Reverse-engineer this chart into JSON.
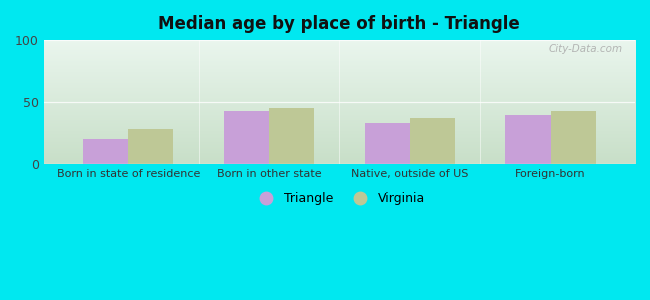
{
  "title": "Median age by place of birth - Triangle",
  "categories": [
    "Born in state of residence",
    "Born in other state",
    "Native, outside of US",
    "Foreign-born"
  ],
  "triangle_values": [
    20,
    43,
    33,
    40
  ],
  "virginia_values": [
    28,
    45,
    37,
    43
  ],
  "triangle_color": "#c8a0d8",
  "virginia_color": "#bec896",
  "ylim": [
    0,
    100
  ],
  "yticks": [
    0,
    50,
    100
  ],
  "background_top_left": "#d8ede0",
  "background_top_right": "#eaf5ee",
  "background_bottom": "#d8eddf",
  "outer_bg": "#00e8f0",
  "bar_width": 0.32,
  "legend_labels": [
    "Triangle",
    "Virginia"
  ],
  "watermark": "City-Data.com",
  "title_fontsize": 12,
  "tick_fontsize": 8,
  "legend_fontsize": 9
}
